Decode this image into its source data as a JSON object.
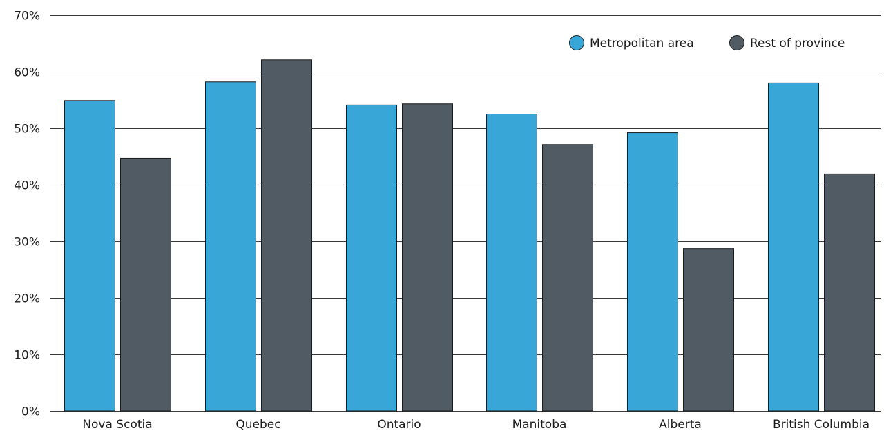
{
  "chart_data": {
    "type": "bar",
    "title": "",
    "xlabel": "",
    "ylabel": "",
    "categories": [
      "Nova Scotia",
      "Quebec",
      "Ontario",
      "Manitoba",
      "Alberta",
      "British Columbia"
    ],
    "series": [
      {
        "name": "Metropolitan area",
        "color": "#38a6d6",
        "values": [
          54.9,
          58.2,
          54.1,
          52.5,
          49.2,
          58.0
        ]
      },
      {
        "name": "Rest of province",
        "color": "#505b64",
        "values": [
          44.7,
          62.1,
          54.3,
          47.1,
          28.7,
          41.9
        ]
      }
    ],
    "ylim": [
      0,
      70
    ],
    "yticks": [
      0,
      10,
      20,
      30,
      40,
      50,
      60,
      70
    ],
    "ytick_labels": [
      "0%",
      "10%",
      "20%",
      "30%",
      "40%",
      "50%",
      "60%",
      "70%"
    ],
    "grid": true,
    "legend_position": "top-right"
  }
}
